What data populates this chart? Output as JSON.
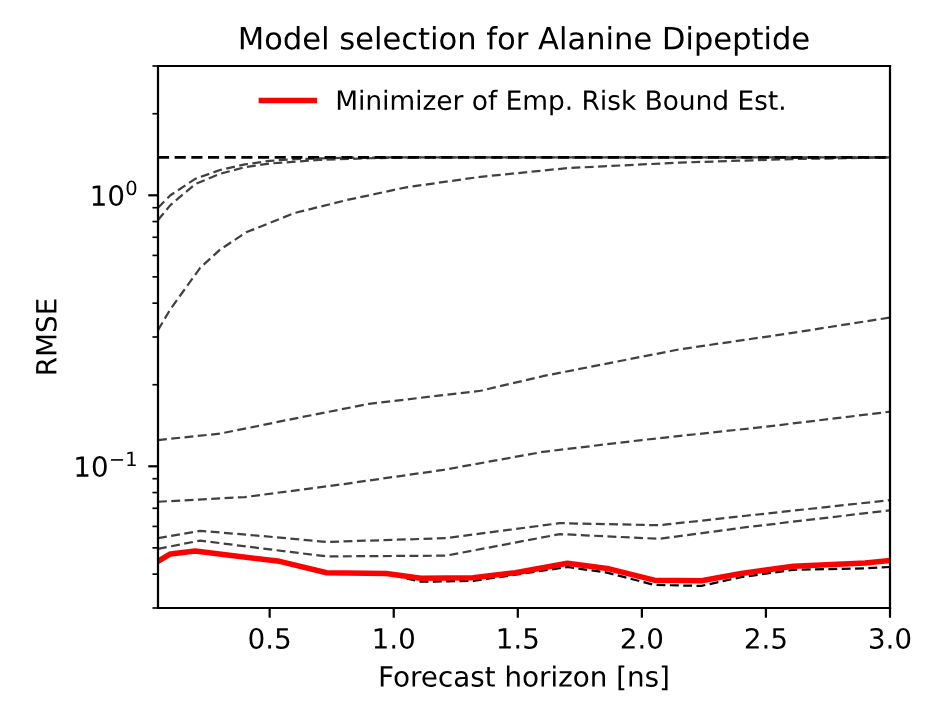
{
  "chart_data": {
    "type": "line",
    "title": "Model selection for Alanine Dipeptide",
    "xlabel": "Forecast horizon [ns]",
    "ylabel": "RMSE",
    "log": "y",
    "xlim": [
      0.05,
      3.0
    ],
    "ylim": [
      0.03,
      3
    ],
    "xticks": [
      0.5,
      {
        "value": 1.0,
        "label": "1.0"
      },
      1.5,
      {
        "value": 2.0,
        "label": "2.0"
      },
      2.5,
      {
        "value": 3.0,
        "label": "3.0"
      }
    ],
    "yticks": [
      {
        "value": 0.1,
        "label": "10$^{−1}$"
      },
      {
        "value": 1,
        "label": "10$^{0}$"
      },
      {
        "value": 0.03,
        "label": null
      },
      {
        "value": 0.04,
        "label": null
      },
      {
        "value": 0.05,
        "label": null
      },
      {
        "value": 0.06,
        "label": null
      },
      {
        "value": 0.07,
        "label": null
      },
      {
        "value": 0.08,
        "label": null
      },
      {
        "value": 0.09,
        "label": null
      },
      {
        "value": 0.2,
        "label": null
      },
      {
        "value": 0.3,
        "label": null
      },
      {
        "value": 0.4,
        "label": null
      },
      {
        "value": 0.5,
        "label": null
      },
      {
        "value": 0.6,
        "label": null
      },
      {
        "value": 0.7,
        "label": null
      },
      {
        "value": 0.8,
        "label": null
      },
      {
        "value": 0.9,
        "label": null
      },
      {
        "value": 2,
        "label": null
      },
      {
        "value": 3,
        "label": null
      }
    ],
    "grid": false,
    "legend": "top",
    "line_style": "dashed",
    "marker": "none",
    "ref_lines": [
      {
        "axis": "y",
        "value": 1.38,
        "color": "#000000",
        "line_style": "dashed"
      }
    ],
    "series": [
      {
        "color": "#404040",
        "x": [
          0.05,
          0.1,
          0.2,
          0.3,
          0.4,
          0.5,
          0.6,
          0.8,
          1.0,
          3.0
        ],
        "values": [
          0.9,
          1.0,
          1.15,
          1.24,
          1.3,
          1.34,
          1.36,
          1.375,
          1.38,
          1.38
        ]
      },
      {
        "color": "#404040",
        "x": [
          0.05,
          0.1,
          0.2,
          0.3,
          0.4,
          0.5,
          0.7,
          0.9,
          1.1,
          3.0
        ],
        "values": [
          0.81,
          0.92,
          1.1,
          1.2,
          1.27,
          1.31,
          1.35,
          1.37,
          1.38,
          1.38
        ]
      },
      {
        "color": "#404040",
        "x": [
          0.05,
          0.1,
          0.22,
          0.3,
          0.405,
          0.6,
          0.81,
          1.05,
          1.35,
          1.7,
          2.15,
          2.6,
          3.0
        ],
        "values": [
          0.318,
          0.38,
          0.54,
          0.63,
          0.73,
          0.86,
          0.96,
          1.07,
          1.17,
          1.26,
          1.32,
          1.36,
          1.38
        ]
      },
      {
        "color": "#404040",
        "x": [
          0.05,
          0.3,
          0.6,
          0.9,
          1.35,
          1.6,
          2.15,
          2.6,
          3.0
        ],
        "values": [
          0.125,
          0.132,
          0.15,
          0.17,
          0.19,
          0.215,
          0.27,
          0.31,
          0.354
        ]
      },
      {
        "color": "#404040",
        "x": [
          0.05,
          0.4,
          0.8,
          1.2,
          1.6,
          2.0,
          2.5,
          3.0
        ],
        "values": [
          0.074,
          0.077,
          0.086,
          0.097,
          0.113,
          0.125,
          0.14,
          0.159
        ]
      },
      {
        "color": "#404040",
        "x": [
          0.05,
          0.22,
          0.45,
          0.73,
          1.21,
          1.67,
          2.07,
          2.42,
          3.0
        ],
        "values": [
          0.0543,
          0.0578,
          0.0555,
          0.0526,
          0.0543,
          0.0617,
          0.0606,
          0.0657,
          0.075
        ]
      },
      {
        "color": "#404040",
        "x": [
          0.05,
          0.22,
          0.45,
          0.73,
          1.21,
          1.67,
          2.07,
          2.42,
          3.0
        ],
        "values": [
          0.0496,
          0.0532,
          0.05,
          0.0465,
          0.0468,
          0.0562,
          0.054,
          0.0596,
          0.0688
        ]
      },
      {
        "color": "#000000",
        "x": [
          0.05,
          0.1,
          0.2,
          0.54,
          0.73,
          0.97,
          1.11,
          1.32,
          1.49,
          1.7,
          1.86,
          2.05,
          2.24,
          2.4,
          2.61,
          2.9,
          3.0
        ],
        "values": [
          0.0446,
          0.0475,
          0.0487,
          0.0446,
          0.0405,
          0.0402,
          0.0375,
          0.0378,
          0.0398,
          0.0425,
          0.0405,
          0.0365,
          0.0362,
          0.039,
          0.0415,
          0.042,
          0.0425
        ]
      },
      {
        "name": "Minimizer of Emp. Risk Bound Est.",
        "color": "#ff0000",
        "line_style": "solid",
        "x": [
          0.05,
          0.1,
          0.2,
          0.54,
          0.73,
          0.97,
          1.11,
          1.32,
          1.49,
          1.7,
          1.86,
          2.05,
          2.24,
          2.4,
          2.61,
          2.9,
          3.0
        ],
        "values": [
          0.0446,
          0.0475,
          0.0487,
          0.0446,
          0.0405,
          0.0402,
          0.0386,
          0.0388,
          0.0405,
          0.0439,
          0.042,
          0.038,
          0.0378,
          0.0402,
          0.0428,
          0.044,
          0.0449
        ]
      }
    ]
  }
}
